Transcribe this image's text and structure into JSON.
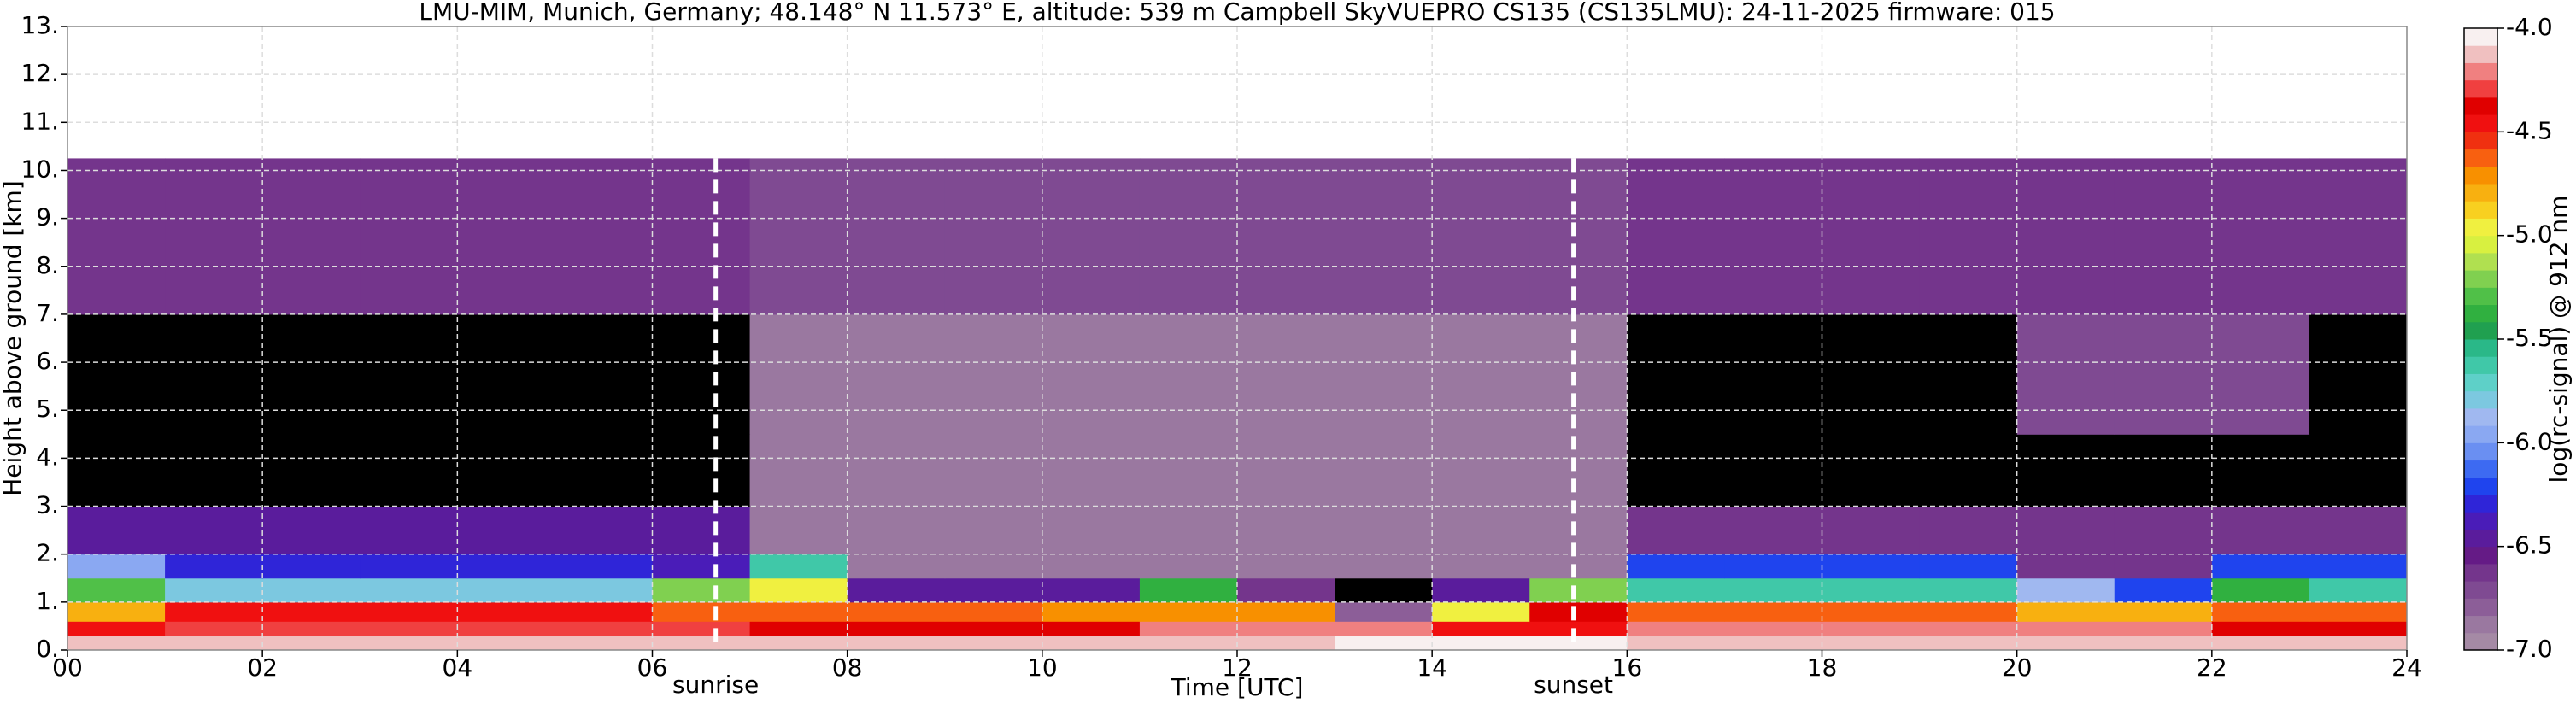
{
  "chart_data": {
    "type": "heatmap",
    "title": "LMU-MIM, Munich, Germany; 48.148° N 11.573° E, altitude: 539 m    Campbell SkyVUEPRO CS135 (CS135LMU): 24-11-2025    firmware: 015",
    "x_label": "Time [UTC]",
    "y_label": "Height above ground [km]",
    "colorbar_label": "log(rc-signal) @ 912 nm",
    "x_edges": [
      0,
      1,
      2,
      3,
      4,
      5,
      6,
      7,
      8,
      9,
      10,
      11,
      12,
      13,
      14,
      15,
      16,
      17,
      18,
      19,
      20,
      21,
      22,
      23,
      24
    ],
    "y_edges": [
      0,
      0.3,
      0.6,
      1,
      1.5,
      2,
      3,
      4.5,
      7,
      10.25
    ],
    "z": [
      [
        -4.1,
        -4.1,
        -4.1,
        -4.1,
        -4.1,
        -4.1,
        -4.1,
        -4.1,
        -4.1,
        -4.1,
        -4.1,
        -4.1,
        -4.1,
        -4.05,
        -4.05,
        -4.05,
        -4.1,
        -4.1,
        -4.1,
        -4.1,
        -4.1,
        -4.1,
        -4.1,
        -4.1
      ],
      [
        -4.5,
        -4.3,
        -4.3,
        -4.3,
        -4.3,
        -4.3,
        -4.3,
        -4.4,
        -4.4,
        -4.4,
        -4.4,
        -4.2,
        -4.2,
        -4.2,
        -4.5,
        -4.5,
        -4.2,
        -4.2,
        -4.2,
        -4.2,
        -4.2,
        -4.2,
        -4.4,
        -4.4
      ],
      [
        -4.8,
        -4.5,
        -4.5,
        -4.5,
        -4.5,
        -4.5,
        -4.6,
        -4.6,
        -4.6,
        -4.6,
        -4.7,
        -4.7,
        -4.7,
        -6.8,
        -5.0,
        -4.4,
        -4.6,
        -4.6,
        -4.6,
        -4.6,
        -4.8,
        -4.8,
        -4.6,
        -4.6
      ],
      [
        -5.3,
        -5.8,
        -5.8,
        -5.8,
        -5.8,
        -5.8,
        -5.2,
        -5.0,
        -6.5,
        -6.5,
        -6.5,
        -5.4,
        -6.6,
        -7.2,
        -6.5,
        -5.2,
        -5.6,
        -5.6,
        -5.6,
        -5.6,
        -5.9,
        -6.2,
        -5.4,
        -5.6
      ],
      [
        -6.0,
        -6.3,
        -6.3,
        -6.3,
        -6.3,
        -6.3,
        -6.4,
        -5.6,
        -6.9,
        -6.9,
        -6.9,
        -6.9,
        -6.9,
        -6.9,
        -6.9,
        -6.9,
        -6.2,
        -6.2,
        -6.2,
        -6.2,
        -6.6,
        -6.6,
        -6.2,
        -6.2
      ],
      [
        -6.5,
        -6.5,
        -6.5,
        -6.5,
        -6.5,
        -6.5,
        -6.5,
        -6.9,
        -6.9,
        -6.9,
        -6.9,
        -6.9,
        -6.9,
        -6.9,
        -6.9,
        -6.9,
        -6.6,
        -6.6,
        -6.6,
        -6.6,
        -6.6,
        -6.6,
        -6.6,
        -6.6
      ],
      [
        -7.2,
        -7.2,
        -7.2,
        -7.2,
        -7.2,
        -7.2,
        -7.2,
        -6.9,
        -6.9,
        -6.9,
        -6.9,
        -6.9,
        -6.9,
        -6.9,
        -6.9,
        -6.9,
        -7.2,
        -7.2,
        -7.2,
        -7.2,
        -7.2,
        -7.2,
        -7.2,
        -7.2
      ],
      [
        -7.2,
        -7.2,
        -7.2,
        -7.2,
        -7.2,
        -7.2,
        -7.2,
        -6.85,
        -6.85,
        -6.85,
        -6.85,
        -6.85,
        -6.85,
        -6.85,
        -6.85,
        -6.85,
        -7.2,
        -7.2,
        -7.2,
        -7.2,
        -6.7,
        -6.7,
        -6.7,
        -7.2
      ],
      [
        -6.6,
        -6.6,
        -6.6,
        -6.6,
        -6.6,
        -6.6,
        -6.6,
        -6.7,
        -6.7,
        -6.7,
        -6.7,
        -6.7,
        -6.7,
        -6.7,
        -6.7,
        -6.7,
        -6.6,
        -6.6,
        -6.6,
        -6.6,
        -6.6,
        -6.6,
        -6.6,
        -6.6
      ]
    ],
    "xlim": [
      0,
      24
    ],
    "xticks": [
      {
        "value": 0,
        "label": "00"
      },
      {
        "value": 2,
        "label": "02"
      },
      {
        "value": 4,
        "label": "04"
      },
      {
        "value": 6,
        "label": "06"
      },
      {
        "value": 8,
        "label": "08"
      },
      10,
      12,
      14,
      16,
      18,
      20,
      22,
      24
    ],
    "ylim": [
      0,
      13
    ],
    "yticks": [
      {
        "value": 0,
        "label": "0."
      },
      {
        "value": 1,
        "label": "1."
      },
      {
        "value": 2,
        "label": "2."
      },
      {
        "value": 3,
        "label": "3."
      },
      {
        "value": 4,
        "label": "4."
      },
      {
        "value": 5,
        "label": "5."
      },
      {
        "value": 6,
        "label": "6."
      },
      {
        "value": 7,
        "label": "7."
      },
      {
        "value": 8,
        "label": "8."
      },
      {
        "value": 9,
        "label": "9."
      },
      {
        "value": 10,
        "label": "10."
      },
      {
        "value": 11,
        "label": "11."
      },
      {
        "value": 12,
        "label": "12."
      },
      {
        "value": 13,
        "label": "13."
      }
    ],
    "clim": [
      -7,
      -4
    ],
    "cticks": [
      {
        "value": -7,
        "label": "-7.0"
      },
      {
        "value": -6.5,
        "label": "-6.5"
      },
      {
        "value": -6,
        "label": "-6.0"
      },
      {
        "value": -5.5,
        "label": "-5.5"
      },
      {
        "value": -5,
        "label": "-5.0"
      },
      {
        "value": -4.5,
        "label": "-4.5"
      },
      {
        "value": -4,
        "label": "-4.0"
      }
    ],
    "colors": [
      "#a58aa5",
      "#9a78a0",
      "#8c5e98",
      "#7f4a92",
      "#74358c",
      "#651b86",
      "#5a1c9c",
      "#4a1cb8",
      "#2f25d8",
      "#1f44ee",
      "#3d6af2",
      "#6a8ff2",
      "#8aa8f2",
      "#a0b8f0",
      "#7cc8e0",
      "#5ed0c8",
      "#40c8a8",
      "#2ab888",
      "#20a050",
      "#30b040",
      "#50c048",
      "#80d050",
      "#b0e050",
      "#d8f040",
      "#f0f040",
      "#f8d020",
      "#f8b010",
      "#f89000",
      "#f86010",
      "#f03010",
      "#f01010",
      "#e00000",
      "#f04040",
      "#f08080",
      "#f0c0c0",
      "#f8f0f0"
    ],
    "under_color": "#000000",
    "grid": true,
    "annotations": [
      {
        "text": "sunrise",
        "x": 6.65
      },
      {
        "text": "sunset",
        "x": 15.45
      }
    ]
  }
}
